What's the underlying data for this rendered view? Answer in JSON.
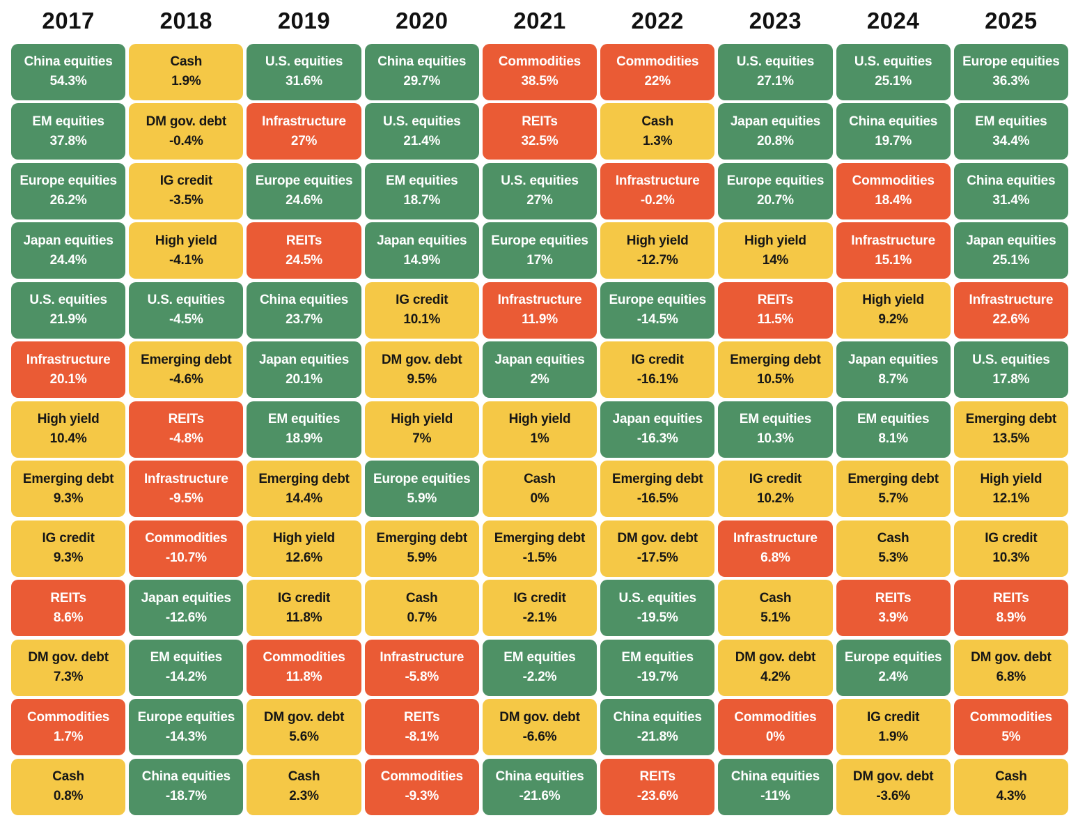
{
  "page": {
    "background": "#FFFFFF"
  },
  "colors": {
    "equities": "#4E9165",
    "fixed_income": "#F5C846",
    "alternatives": "#EA5B35",
    "text_on_equities": "#FFFFFF",
    "text_on_fixed_income": "#161616",
    "text_on_alternatives": "#FFFFFF",
    "year_label": "#111111"
  },
  "asset_categories": {
    "China equities": "equities",
    "EM equities": "equities",
    "Europe equities": "equities",
    "Japan equities": "equities",
    "U.S. equities": "equities",
    "Infrastructure": "alternatives",
    "REITs": "alternatives",
    "Commodities": "alternatives",
    "High yield": "fixed_income",
    "Emerging debt": "fixed_income",
    "IG credit": "fixed_income",
    "DM gov. debt": "fixed_income",
    "Cash": "fixed_income"
  },
  "chart_data": {
    "type": "table",
    "subtype": "asset-return-quilt",
    "columns": [
      "2017",
      "2018",
      "2019",
      "2020",
      "2021",
      "2022",
      "2023",
      "2024",
      "2025"
    ],
    "legend_position": "none",
    "years": [
      {
        "year": "2017",
        "ranked": [
          {
            "asset": "China equities",
            "return_pct": 54.3
          },
          {
            "asset": "EM equities",
            "return_pct": 37.8
          },
          {
            "asset": "Europe equities",
            "return_pct": 26.2
          },
          {
            "asset": "Japan equities",
            "return_pct": 24.4
          },
          {
            "asset": "U.S. equities",
            "return_pct": 21.9
          },
          {
            "asset": "Infrastructure",
            "return_pct": 20.1
          },
          {
            "asset": "High yield",
            "return_pct": 10.4
          },
          {
            "asset": "Emerging debt",
            "return_pct": 9.3
          },
          {
            "asset": "IG credit",
            "return_pct": 9.3
          },
          {
            "asset": "REITs",
            "return_pct": 8.6
          },
          {
            "asset": "DM gov. debt",
            "return_pct": 7.3
          },
          {
            "asset": "Commodities",
            "return_pct": 1.7
          },
          {
            "asset": "Cash",
            "return_pct": 0.8
          }
        ]
      },
      {
        "year": "2018",
        "ranked": [
          {
            "asset": "Cash",
            "return_pct": 1.9
          },
          {
            "asset": "DM gov. debt",
            "return_pct": -0.4
          },
          {
            "asset": "IG credit",
            "return_pct": -3.5
          },
          {
            "asset": "High yield",
            "return_pct": -4.1
          },
          {
            "asset": "U.S. equities",
            "return_pct": -4.5
          },
          {
            "asset": "Emerging debt",
            "return_pct": -4.6
          },
          {
            "asset": "REITs",
            "return_pct": -4.8
          },
          {
            "asset": "Infrastructure",
            "return_pct": -9.5
          },
          {
            "asset": "Commodities",
            "return_pct": -10.7
          },
          {
            "asset": "Japan equities",
            "return_pct": -12.6
          },
          {
            "asset": "EM equities",
            "return_pct": -14.2
          },
          {
            "asset": "Europe equities",
            "return_pct": -14.3
          },
          {
            "asset": "China equities",
            "return_pct": -18.7
          }
        ]
      },
      {
        "year": "2019",
        "ranked": [
          {
            "asset": "U.S. equities",
            "return_pct": 31.6
          },
          {
            "asset": "Infrastructure",
            "return_pct": 27
          },
          {
            "asset": "Europe equities",
            "return_pct": 24.6
          },
          {
            "asset": "REITs",
            "return_pct": 24.5
          },
          {
            "asset": "China equities",
            "return_pct": 23.7
          },
          {
            "asset": "Japan equities",
            "return_pct": 20.1
          },
          {
            "asset": "EM equities",
            "return_pct": 18.9
          },
          {
            "asset": "Emerging debt",
            "return_pct": 14.4
          },
          {
            "asset": "High yield",
            "return_pct": 12.6
          },
          {
            "asset": "IG credit",
            "return_pct": 11.8
          },
          {
            "asset": "Commodities",
            "return_pct": 11.8
          },
          {
            "asset": "DM gov. debt",
            "return_pct": 5.6
          },
          {
            "asset": "Cash",
            "return_pct": 2.3
          }
        ]
      },
      {
        "year": "2020",
        "ranked": [
          {
            "asset": "China equities",
            "return_pct": 29.7
          },
          {
            "asset": "U.S. equities",
            "return_pct": 21.4
          },
          {
            "asset": "EM equities",
            "return_pct": 18.7
          },
          {
            "asset": "Japan equities",
            "return_pct": 14.9
          },
          {
            "asset": "IG credit",
            "return_pct": 10.1
          },
          {
            "asset": "DM gov. debt",
            "return_pct": 9.5
          },
          {
            "asset": "High yield",
            "return_pct": 7
          },
          {
            "asset": "Europe equities",
            "return_pct": 5.9
          },
          {
            "asset": "Emerging debt",
            "return_pct": 5.9
          },
          {
            "asset": "Cash",
            "return_pct": 0.7
          },
          {
            "asset": "Infrastructure",
            "return_pct": -5.8
          },
          {
            "asset": "REITs",
            "return_pct": -8.1
          },
          {
            "asset": "Commodities",
            "return_pct": -9.3
          }
        ]
      },
      {
        "year": "2021",
        "ranked": [
          {
            "asset": "Commodities",
            "return_pct": 38.5
          },
          {
            "asset": "REITs",
            "return_pct": 32.5
          },
          {
            "asset": "U.S. equities",
            "return_pct": 27
          },
          {
            "asset": "Europe equities",
            "return_pct": 17
          },
          {
            "asset": "Infrastructure",
            "return_pct": 11.9
          },
          {
            "asset": "Japan equities",
            "return_pct": 2
          },
          {
            "asset": "High yield",
            "return_pct": 1
          },
          {
            "asset": "Cash",
            "return_pct": 0
          },
          {
            "asset": "Emerging debt",
            "return_pct": -1.5
          },
          {
            "asset": "IG credit",
            "return_pct": -2.1
          },
          {
            "asset": "EM equities",
            "return_pct": -2.2
          },
          {
            "asset": "DM gov. debt",
            "return_pct": -6.6
          },
          {
            "asset": "China equities",
            "return_pct": -21.6
          }
        ]
      },
      {
        "year": "2022",
        "ranked": [
          {
            "asset": "Commodities",
            "return_pct": 22
          },
          {
            "asset": "Cash",
            "return_pct": 1.3
          },
          {
            "asset": "Infrastructure",
            "return_pct": -0.2
          },
          {
            "asset": "High yield",
            "return_pct": -12.7
          },
          {
            "asset": "Europe equities",
            "return_pct": -14.5
          },
          {
            "asset": "IG credit",
            "return_pct": -16.1
          },
          {
            "asset": "Japan equities",
            "return_pct": -16.3
          },
          {
            "asset": "Emerging debt",
            "return_pct": -16.5
          },
          {
            "asset": "DM gov. debt",
            "return_pct": -17.5
          },
          {
            "asset": "U.S. equities",
            "return_pct": -19.5
          },
          {
            "asset": "EM equities",
            "return_pct": -19.7
          },
          {
            "asset": "China equities",
            "return_pct": -21.8
          },
          {
            "asset": "REITs",
            "return_pct": -23.6
          }
        ]
      },
      {
        "year": "2023",
        "ranked": [
          {
            "asset": "U.S. equities",
            "return_pct": 27.1
          },
          {
            "asset": "Japan equities",
            "return_pct": 20.8
          },
          {
            "asset": "Europe equities",
            "return_pct": 20.7
          },
          {
            "asset": "High yield",
            "return_pct": 14
          },
          {
            "asset": "REITs",
            "return_pct": 11.5
          },
          {
            "asset": "Emerging debt",
            "return_pct": 10.5
          },
          {
            "asset": "EM equities",
            "return_pct": 10.3
          },
          {
            "asset": "IG credit",
            "return_pct": 10.2
          },
          {
            "asset": "Infrastructure",
            "return_pct": 6.8
          },
          {
            "asset": "Cash",
            "return_pct": 5.1
          },
          {
            "asset": "DM gov. debt",
            "return_pct": 4.2
          },
          {
            "asset": "Commodities",
            "return_pct": 0
          },
          {
            "asset": "China equities",
            "return_pct": -11
          }
        ]
      },
      {
        "year": "2024",
        "ranked": [
          {
            "asset": "U.S. equities",
            "return_pct": 25.1
          },
          {
            "asset": "China equities",
            "return_pct": 19.7
          },
          {
            "asset": "Commodities",
            "return_pct": 18.4
          },
          {
            "asset": "Infrastructure",
            "return_pct": 15.1
          },
          {
            "asset": "High yield",
            "return_pct": 9.2
          },
          {
            "asset": "Japan equities",
            "return_pct": 8.7
          },
          {
            "asset": "EM equities",
            "return_pct": 8.1
          },
          {
            "asset": "Emerging debt",
            "return_pct": 5.7
          },
          {
            "asset": "Cash",
            "return_pct": 5.3
          },
          {
            "asset": "REITs",
            "return_pct": 3.9
          },
          {
            "asset": "Europe equities",
            "return_pct": 2.4
          },
          {
            "asset": "IG credit",
            "return_pct": 1.9
          },
          {
            "asset": "DM gov. debt",
            "return_pct": -3.6
          }
        ]
      },
      {
        "year": "2025",
        "ranked": [
          {
            "asset": "Europe equities",
            "return_pct": 36.3
          },
          {
            "asset": "EM equities",
            "return_pct": 34.4
          },
          {
            "asset": "China equities",
            "return_pct": 31.4
          },
          {
            "asset": "Japan equities",
            "return_pct": 25.1
          },
          {
            "asset": "Infrastructure",
            "return_pct": 22.6
          },
          {
            "asset": "U.S. equities",
            "return_pct": 17.8
          },
          {
            "asset": "Emerging debt",
            "return_pct": 13.5
          },
          {
            "asset": "High yield",
            "return_pct": 12.1
          },
          {
            "asset": "IG credit",
            "return_pct": 10.3
          },
          {
            "asset": "REITs",
            "return_pct": 8.9
          },
          {
            "asset": "DM gov. debt",
            "return_pct": 6.8
          },
          {
            "asset": "Commodities",
            "return_pct": 5
          },
          {
            "asset": "Cash",
            "return_pct": 4.3
          }
        ]
      }
    ]
  }
}
